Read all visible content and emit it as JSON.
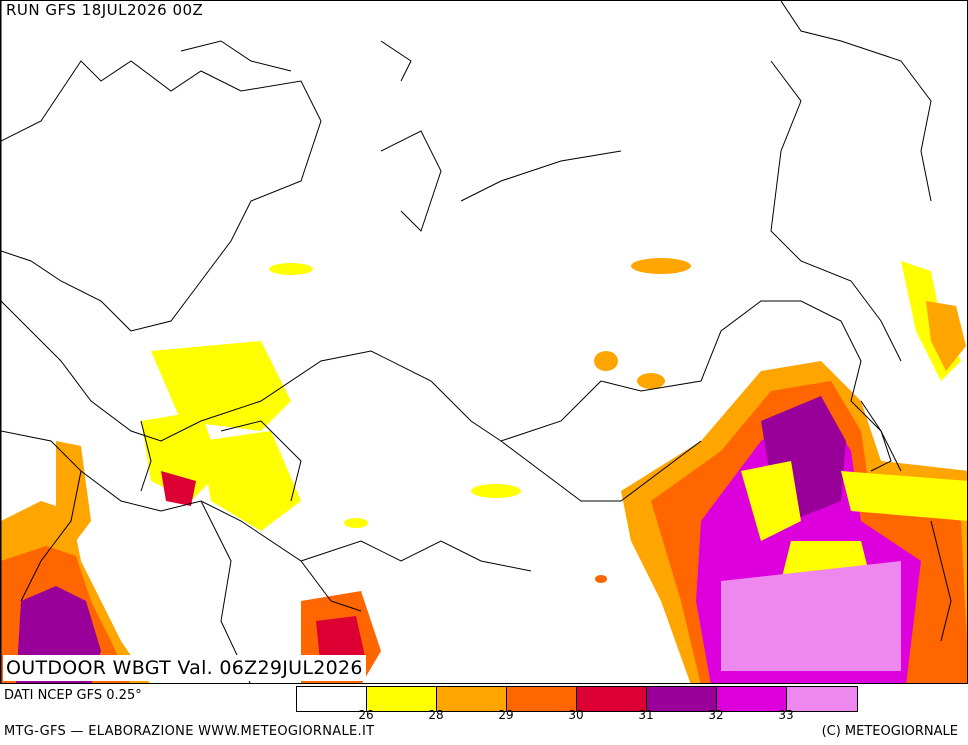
{
  "run_label": "RUN GFS 18JUL2026 00Z",
  "title": "OUTDOOR WBGT Val. 06Z29JUL2026",
  "source": "DATI NCEP GFS 0.25°",
  "footer_left": "MTG-GFS — ELABORAZIONE WWW.METEOGIORNALE.IT",
  "footer_right": "(C) METEOGIORNALE",
  "legend": {
    "colors": [
      "#ffffff",
      "#ffff00",
      "#ffa500",
      "#ff6600",
      "#dd0033",
      "#990099",
      "#dd00dd",
      "#ee88ee"
    ],
    "ticks": [
      "26",
      "28",
      "29",
      "30",
      "31",
      "32",
      "33"
    ]
  }
}
